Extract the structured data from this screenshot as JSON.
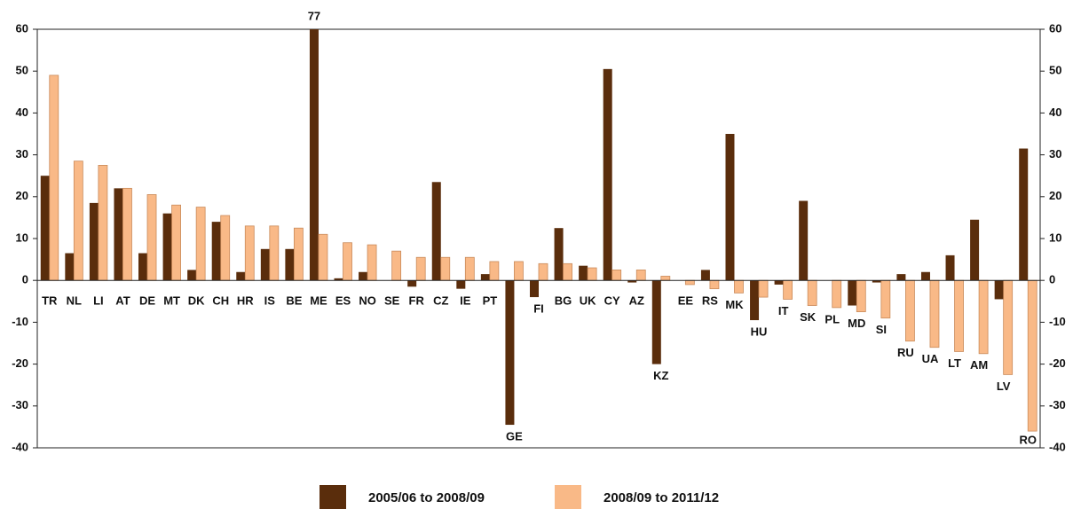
{
  "chart_data": {
    "type": "bar",
    "categories": [
      "TR",
      "NL",
      "LI",
      "AT",
      "DE",
      "MT",
      "DK",
      "CH",
      "HR",
      "IS",
      "BE",
      "ME",
      "ES",
      "NO",
      "SE",
      "FR",
      "CZ",
      "IE",
      "PT",
      "GE",
      "FI",
      "BG",
      "UK",
      "CY",
      "AZ",
      "KZ",
      "EE",
      "RS",
      "MK",
      "HU",
      "IT",
      "SK",
      "PL",
      "MD",
      "SI",
      "RU",
      "UA",
      "LT",
      "AM",
      "LV",
      "RO"
    ],
    "series": [
      {
        "name": "2005/06 to 2008/09",
        "color": "#5a2d0c",
        "values": [
          25,
          6.5,
          18.5,
          22,
          6.5,
          16,
          2.5,
          14,
          2,
          7.5,
          7.5,
          77,
          0.5,
          2,
          0,
          -1.5,
          23.5,
          -2,
          1.5,
          -34.5,
          -4,
          12.5,
          3.5,
          50.5,
          -0.5,
          -20,
          0,
          2.5,
          35,
          -9.5,
          -1,
          19,
          0,
          -6,
          -0.5,
          1.5,
          2,
          6,
          14.5,
          -4.5,
          31.5
        ],
        "value_labels": [
          null,
          null,
          null,
          null,
          null,
          null,
          null,
          null,
          null,
          null,
          null,
          "77",
          null,
          null,
          null,
          null,
          null,
          null,
          null,
          null,
          null,
          null,
          null,
          null,
          null,
          null,
          null,
          null,
          null,
          null,
          null,
          null,
          null,
          null,
          null,
          null,
          null,
          null,
          null,
          null,
          null
        ]
      },
      {
        "name": "2008/09 to 2011/12",
        "color": "#f9b987",
        "values": [
          49,
          28.5,
          27.5,
          22,
          20.5,
          18,
          17.5,
          15.5,
          13,
          13,
          12.5,
          11,
          9,
          8.5,
          7,
          5.5,
          5.5,
          5.5,
          4.5,
          4.5,
          4,
          4,
          3,
          2.5,
          2.5,
          1,
          -1,
          -2,
          -3,
          -4,
          -4.5,
          -6,
          -6.5,
          -7.5,
          -9,
          -14.5,
          -16,
          -17,
          -17.5,
          -22.5,
          -36
        ]
      }
    ],
    "ylim": [
      -40,
      60
    ],
    "yticks": [
      -40,
      -30,
      -20,
      -10,
      0,
      10,
      20,
      30,
      40,
      50,
      60
    ]
  }
}
